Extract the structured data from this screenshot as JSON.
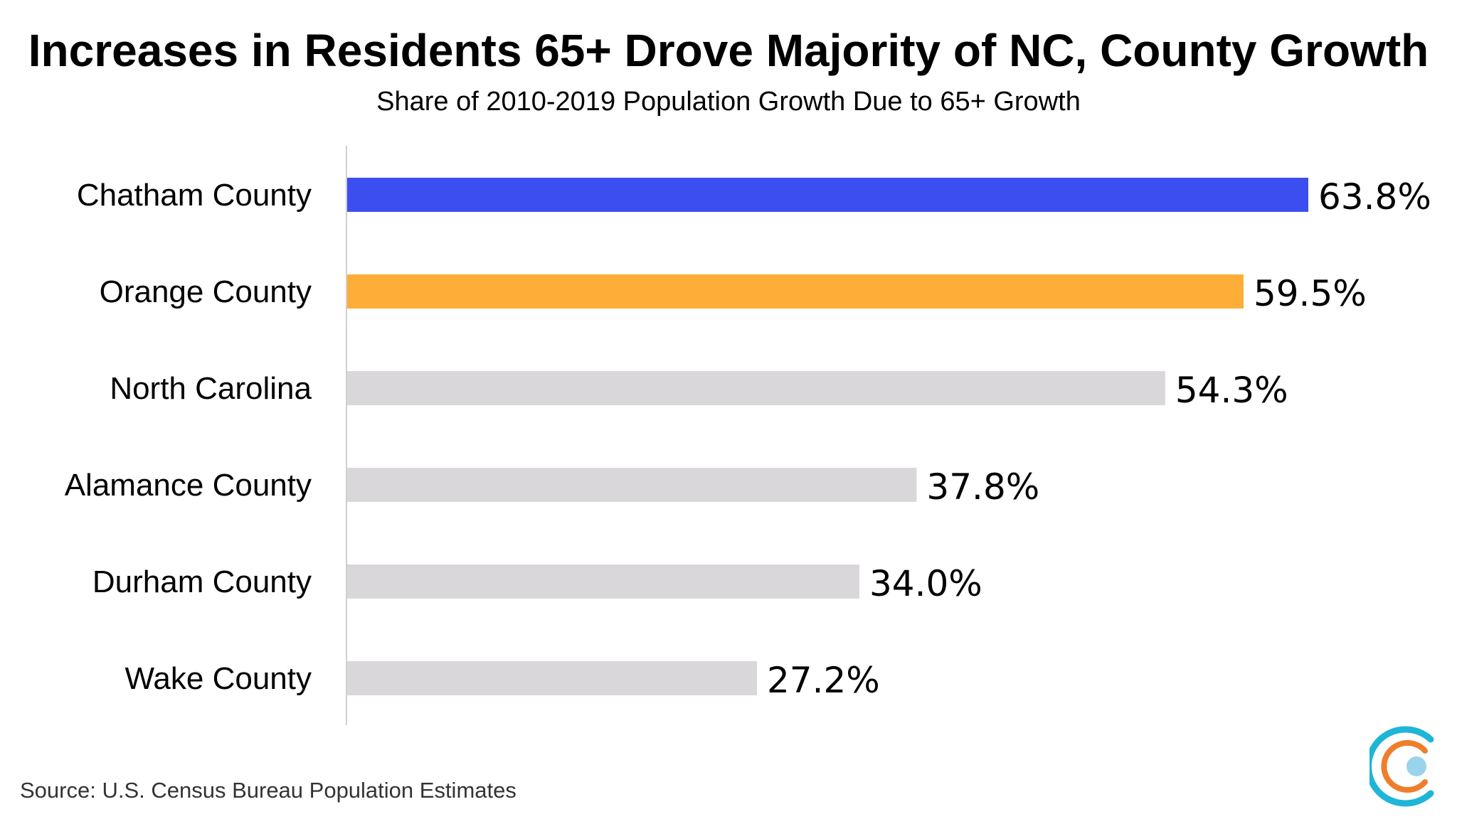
{
  "chart_data": {
    "type": "bar",
    "orientation": "horizontal",
    "title": "Increases in Residents 65+ Drove Majority of NC, County Growth",
    "subtitle": "Share of 2010-2019 Population Growth Due to 65+ Growth",
    "categories": [
      "Chatham County",
      "Orange County",
      "North Carolina",
      "Alamance County",
      "Durham County",
      "Wake County"
    ],
    "values": [
      63.8,
      59.5,
      54.3,
      37.8,
      34.0,
      27.2
    ],
    "value_labels": [
      "63.8%",
      "59.5%",
      "54.3%",
      "37.8%",
      "34.0%",
      "27.2%"
    ],
    "bar_colors": [
      "#3b4ff0",
      "#fdae38",
      "#d9d7da",
      "#d9d7da",
      "#d9d7da",
      "#d9d7da"
    ],
    "xlim": [
      0,
      66
    ],
    "grid": false,
    "legend": "none"
  },
  "source": "Source: U.S. Census Bureau Population Estimates",
  "logo": {
    "icon": "concentric-c-logo-icon",
    "colors": [
      "#1fb5d6",
      "#f07d2b",
      "#9ad3ec"
    ]
  }
}
